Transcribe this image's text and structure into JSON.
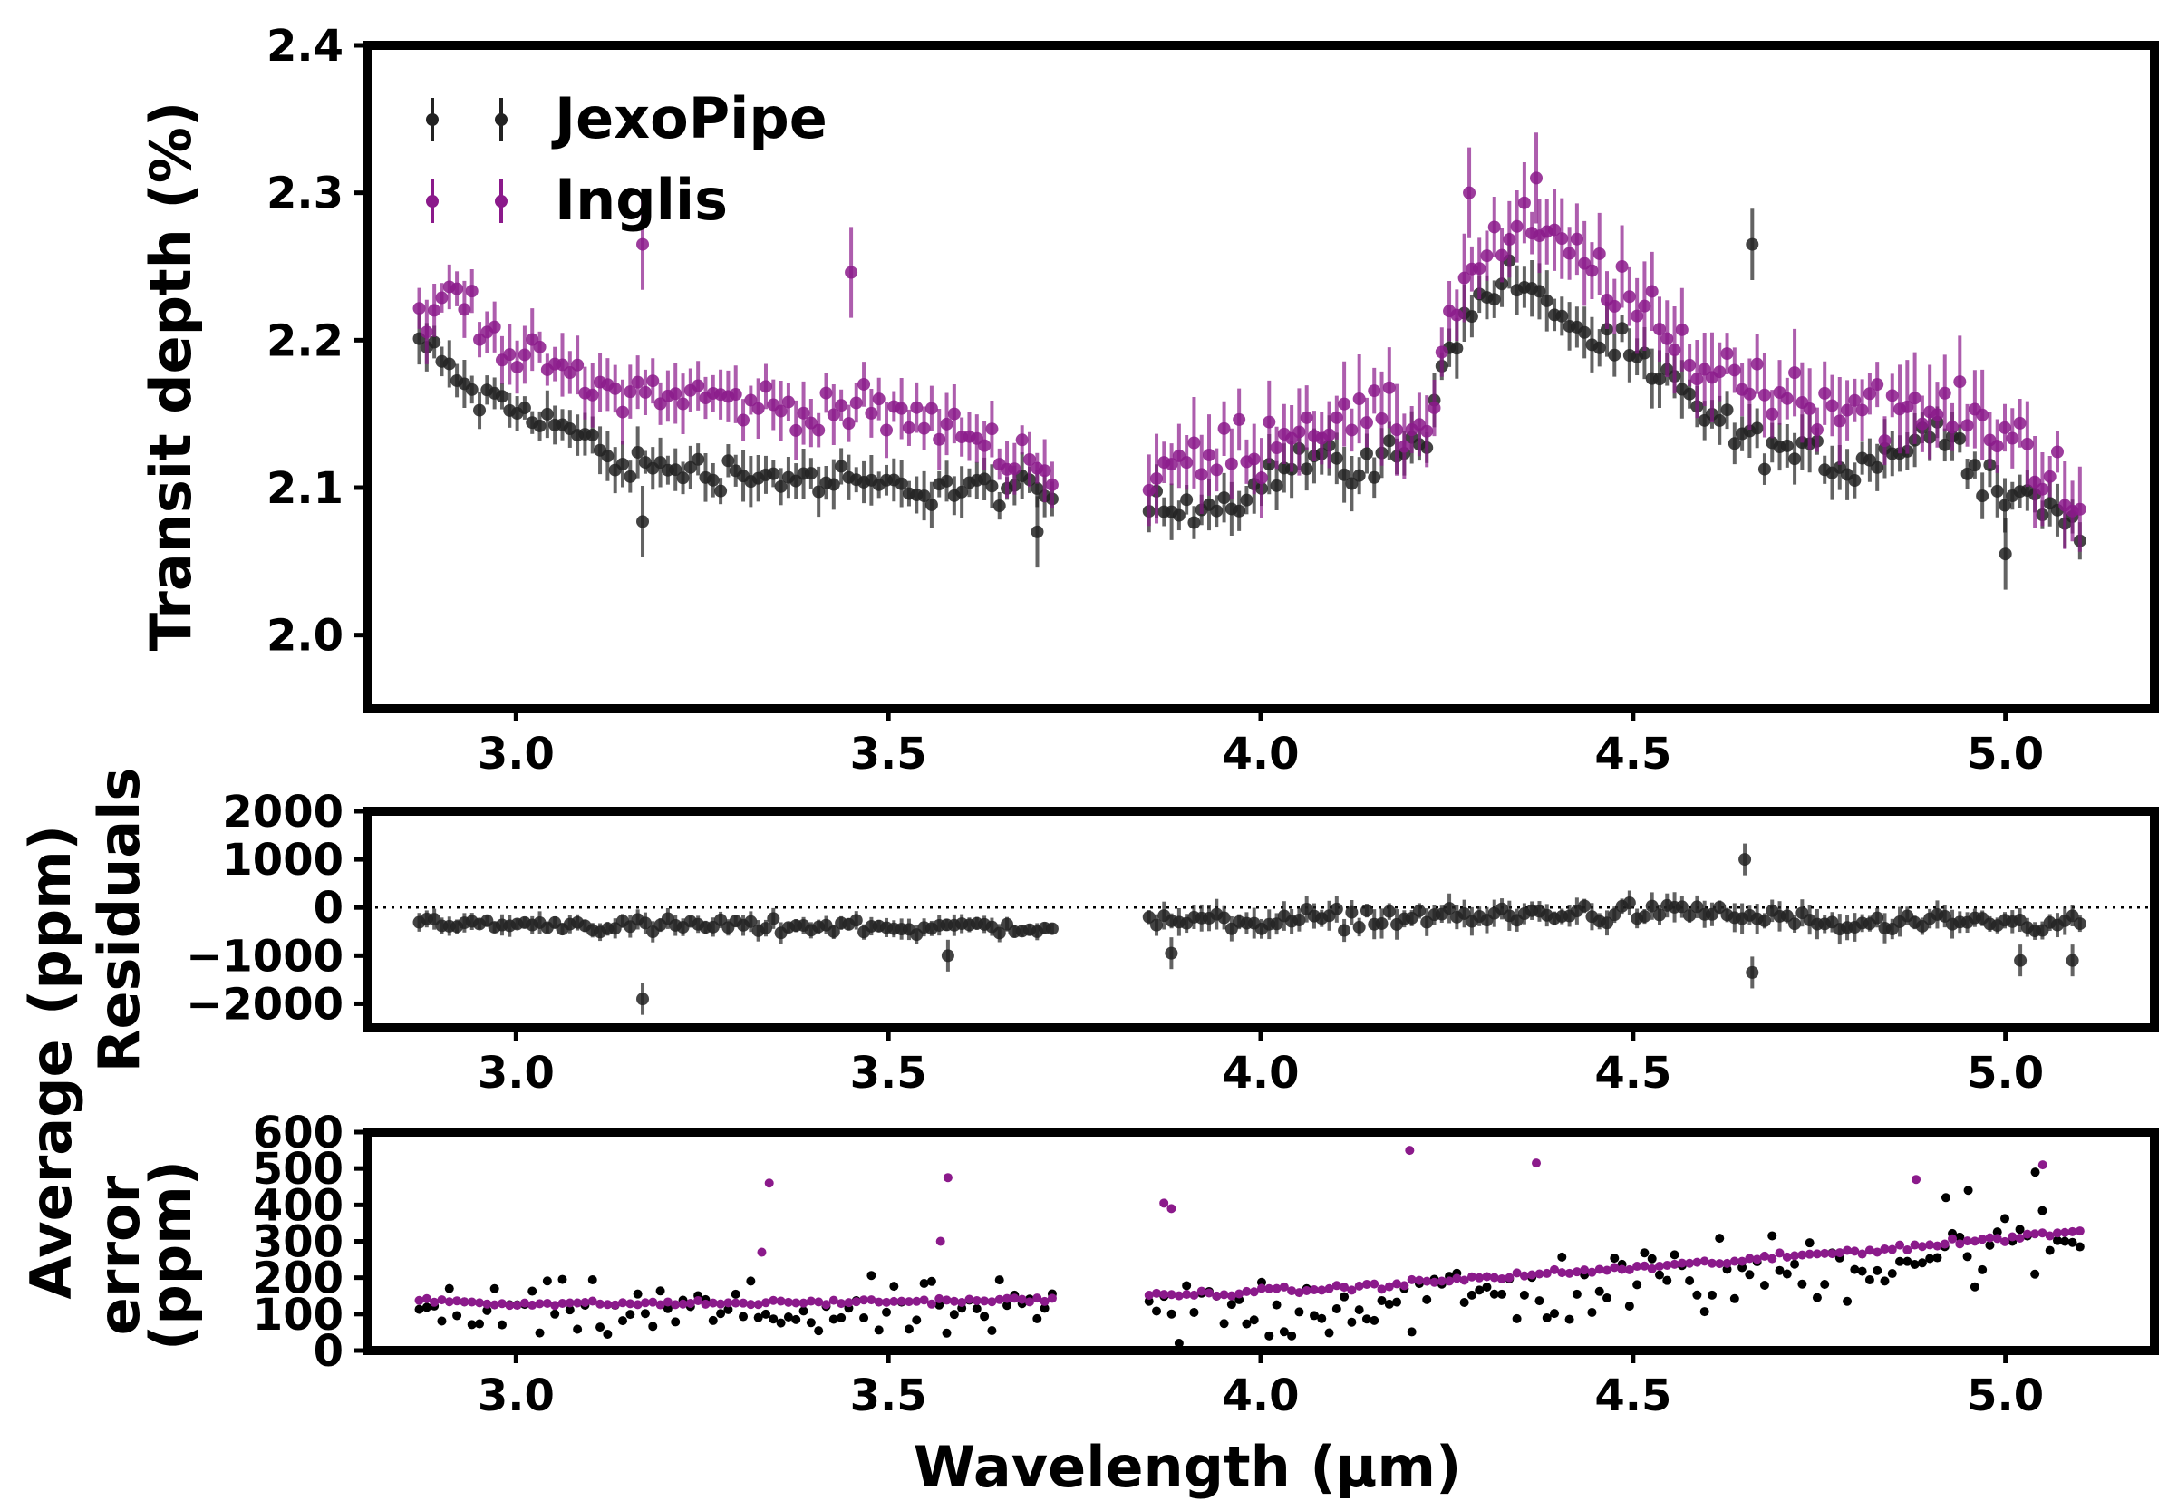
{
  "chart_data": [
    {
      "id": "transit",
      "type": "scatter",
      "ylabel": "Transit depth (%)",
      "xlim": [
        2.8,
        5.2
      ],
      "ylim": [
        1.95,
        2.4
      ],
      "xticks": [
        "3.0",
        "3.5",
        "4.0",
        "4.5",
        "5.0"
      ],
      "yticks": [
        "2.0",
        "2.1",
        "2.2",
        "2.3",
        "2.4"
      ],
      "legend": {
        "position": "upper-left",
        "entries": [
          {
            "label": "JexoPipe",
            "color": "#222222"
          },
          {
            "label": "Inglis",
            "color": "#8b1a8b"
          }
        ]
      },
      "series": [
        {
          "name": "JexoPipe",
          "color": "#222222",
          "segments": [
            {
              "x0": 2.87,
              "x1": 3.72,
              "n": 85,
              "err": 0.011,
              "knots": [
                [
                  2.87,
                  2.2
                ],
                [
                  2.95,
                  2.16
                ],
                [
                  3.05,
                  2.145
                ],
                [
                  3.15,
                  2.115
                ],
                [
                  3.3,
                  2.11
                ],
                [
                  3.5,
                  2.1
                ],
                [
                  3.6,
                  2.1
                ],
                [
                  3.72,
                  2.095
                ]
              ]
            },
            {
              "x0": 3.85,
              "x1": 5.1,
              "n": 125,
              "err": 0.013,
              "knots": [
                [
                  3.85,
                  2.085
                ],
                [
                  3.95,
                  2.09
                ],
                [
                  4.05,
                  2.12
                ],
                [
                  4.15,
                  2.115
                ],
                [
                  4.22,
                  2.13
                ],
                [
                  4.25,
                  2.2
                ],
                [
                  4.33,
                  2.245
                ],
                [
                  4.45,
                  2.2
                ],
                [
                  4.55,
                  2.17
                ],
                [
                  4.65,
                  2.13
                ],
                [
                  4.8,
                  2.115
                ],
                [
                  4.9,
                  2.14
                ],
                [
                  5.0,
                  2.1
                ],
                [
                  5.1,
                  2.075
                ]
              ]
            }
          ],
          "outliers": [
            [
              3.17,
              2.077
            ],
            [
              4.66,
              2.265
            ],
            [
              5.0,
              2.055
            ],
            [
              3.7,
              2.07
            ]
          ]
        },
        {
          "name": "Inglis",
          "color": "#8b1a8b",
          "segments": [
            {
              "x0": 2.87,
              "x1": 3.72,
              "n": 85,
              "err": 0.014,
              "knots": [
                [
                  2.87,
                  2.205
                ],
                [
                  2.92,
                  2.235
                ],
                [
                  3.0,
                  2.19
                ],
                [
                  3.1,
                  2.17
                ],
                [
                  3.2,
                  2.165
                ],
                [
                  3.35,
                  2.155
                ],
                [
                  3.5,
                  2.15
                ],
                [
                  3.6,
                  2.14
                ],
                [
                  3.72,
                  2.11
                ]
              ]
            },
            {
              "x0": 3.85,
              "x1": 5.1,
              "n": 125,
              "err": 0.02,
              "knots": [
                [
                  3.85,
                  2.11
                ],
                [
                  3.95,
                  2.12
                ],
                [
                  4.05,
                  2.145
                ],
                [
                  4.15,
                  2.145
                ],
                [
                  4.22,
                  2.14
                ],
                [
                  4.27,
                  2.24
                ],
                [
                  4.35,
                  2.275
                ],
                [
                  4.45,
                  2.25
                ],
                [
                  4.55,
                  2.2
                ],
                [
                  4.65,
                  2.17
                ],
                [
                  4.8,
                  2.155
                ],
                [
                  4.95,
                  2.15
                ],
                [
                  5.05,
                  2.12
                ],
                [
                  5.1,
                  2.09
                ]
              ]
            }
          ],
          "outliers": [
            [
              3.17,
              2.265
            ],
            [
              3.45,
              2.246
            ],
            [
              4.28,
              2.3
            ],
            [
              4.37,
              2.31
            ]
          ]
        }
      ]
    },
    {
      "id": "residuals",
      "type": "scatter",
      "ylabel_lines": [
        "Residuals",
        "(ppm)"
      ],
      "xlim": [
        2.8,
        5.2
      ],
      "ylim": [
        -2500,
        2000
      ],
      "xticks": [
        "3.0",
        "3.5",
        "4.0",
        "4.5",
        "5.0"
      ],
      "yticks": [
        "2000",
        "1000",
        "0",
        "−1000",
        "−2000"
      ],
      "zero_line": true,
      "series": [
        {
          "name": "residuals",
          "color": "#222222",
          "segments": [
            {
              "x0": 2.87,
              "x1": 3.72,
              "n": 85,
              "err": 150,
              "knots": [
                [
                  2.87,
                  -350
                ],
                [
                  3.3,
                  -380
                ],
                [
                  3.72,
                  -420
                ]
              ]
            },
            {
              "x0": 3.85,
              "x1": 5.1,
              "n": 125,
              "err": 200,
              "knots": [
                [
                  3.85,
                  -300
                ],
                [
                  4.2,
                  -200
                ],
                [
                  4.6,
                  -100
                ],
                [
                  4.8,
                  -380
                ],
                [
                  5.1,
                  -350
                ]
              ]
            }
          ],
          "outliers": [
            [
              3.17,
              -1900
            ],
            [
              4.65,
              1000
            ],
            [
              4.66,
              -1350
            ],
            [
              3.58,
              -1000
            ],
            [
              3.88,
              -950
            ],
            [
              5.02,
              -1100
            ],
            [
              5.09,
              -1100
            ]
          ]
        }
      ]
    },
    {
      "id": "average-error",
      "type": "scatter",
      "ylabel_lines": [
        "error",
        "(ppm)"
      ],
      "xlim": [
        2.8,
        5.2
      ],
      "ylim": [
        0,
        600
      ],
      "xticks": [
        "3.0",
        "3.5",
        "4.0",
        "4.5",
        "5.0"
      ],
      "yticks": [
        "600",
        "500",
        "400",
        "300",
        "200",
        "100",
        "0"
      ],
      "series": [
        {
          "name": "JexoPipe",
          "color": "#000000",
          "segments": [
            {
              "x0": 2.87,
              "x1": 3.72,
              "n": 85,
              "scatter": 70,
              "knots": [
                [
                  2.87,
                  105
                ],
                [
                  3.72,
                  105
                ]
              ]
            },
            {
              "x0": 3.85,
              "x1": 5.1,
              "n": 125,
              "scatter": 90,
              "knots": [
                [
                  3.85,
                  100
                ],
                [
                  4.3,
                  150
                ],
                [
                  4.6,
                  200
                ],
                [
                  4.9,
                  260
                ],
                [
                  5.1,
                  300
                ]
              ]
            }
          ],
          "outliers": [
            [
              4.95,
              440
            ],
            [
              5.04,
              490
            ],
            [
              4.92,
              420
            ]
          ]
        },
        {
          "name": "Inglis",
          "color": "#8b1a8b",
          "segments": [
            {
              "x0": 2.87,
              "x1": 3.72,
              "n": 85,
              "scatter": 6,
              "knots": [
                [
                  2.87,
                  140
                ],
                [
                  3.0,
                  128
                ],
                [
                  3.3,
                  130
                ],
                [
                  3.72,
                  140
                ]
              ]
            },
            {
              "x0": 3.85,
              "x1": 5.1,
              "n": 125,
              "scatter": 8,
              "knots": [
                [
                  3.85,
                  150
                ],
                [
                  4.1,
                  170
                ],
                [
                  4.3,
                  200
                ],
                [
                  4.6,
                  240
                ],
                [
                  4.9,
                  290
                ],
                [
                  5.1,
                  330
                ]
              ]
            }
          ],
          "outliers": [
            [
              3.34,
              460
            ],
            [
              3.58,
              475
            ],
            [
              3.87,
              405
            ],
            [
              3.88,
              390
            ],
            [
              4.2,
              550
            ],
            [
              4.37,
              515
            ],
            [
              5.05,
              510
            ],
            [
              3.33,
              270
            ],
            [
              3.57,
              300
            ],
            [
              4.88,
              470
            ]
          ]
        }
      ]
    }
  ],
  "shared_labels": {
    "xlabel": "Wavelength (μm)",
    "side_label": "Average"
  }
}
